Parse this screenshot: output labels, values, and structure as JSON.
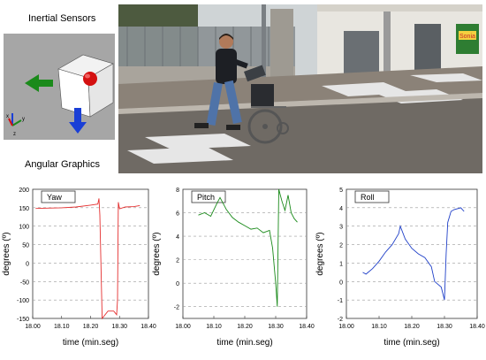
{
  "labels": {
    "inertial_sensors": "Inertial Sensors",
    "angular_graphics": "Angular Graphics"
  },
  "sensor_view": {
    "axis_labels": [
      "z",
      "y",
      "x"
    ],
    "colors": {
      "bg": "#a6a6a6",
      "cube": "#ffffff",
      "sphere": "#e01010",
      "arrow_left": "#1a8a1a",
      "arrow_down": "#1a3fd6"
    }
  },
  "photo": {
    "description_icon": "wheelchair-photo",
    "sign_text": "Sonia"
  },
  "chart_data": [
    {
      "type": "line",
      "title": "Yaw",
      "xlabel": "time (min.seg)",
      "ylabel": "degrees (º)",
      "xlim": [
        18.0,
        18.4
      ],
      "ylim": [
        -150,
        200
      ],
      "xticks": [
        "18.00",
        "18.10",
        "18.20",
        "18.30",
        "18.40"
      ],
      "yticks": [
        "200",
        "150",
        "100",
        "50",
        "0",
        "-50",
        "-100",
        "-150"
      ],
      "color": "#e53030",
      "series": [
        {
          "x": [
            18.01,
            18.05,
            18.1,
            18.15,
            18.2,
            18.225,
            18.229,
            18.232,
            18.24,
            18.26,
            18.28,
            18.29,
            18.293,
            18.296,
            18.3,
            18.32,
            18.35,
            18.37
          ],
          "values": [
            148,
            149,
            150,
            152,
            157,
            160,
            175,
            130,
            -150,
            -130,
            -130,
            -140,
            -100,
            165,
            147,
            152,
            153,
            156
          ]
        }
      ]
    },
    {
      "type": "line",
      "title": "Pitch",
      "xlabel": "time (min.seg)",
      "ylabel": "degrees (º)",
      "xlim": [
        18.0,
        18.4
      ],
      "ylim": [
        -3,
        8
      ],
      "xticks": [
        "18.00",
        "18.10",
        "18.20",
        "18.30",
        "18.40"
      ],
      "yticks": [
        "8",
        "6",
        "4",
        "2",
        "0",
        "-2"
      ],
      "color": "#1a8a1a",
      "series": [
        {
          "x": [
            18.05,
            18.07,
            18.09,
            18.11,
            18.12,
            18.14,
            18.16,
            18.18,
            18.2,
            18.22,
            18.24,
            18.26,
            18.28,
            18.29,
            18.3,
            18.305,
            18.31,
            18.32,
            18.33,
            18.34,
            18.35,
            18.36,
            18.37
          ],
          "values": [
            5.8,
            6.0,
            5.7,
            6.8,
            7.3,
            6.3,
            5.6,
            5.2,
            4.9,
            4.6,
            4.7,
            4.3,
            4.5,
            3.0,
            0.0,
            -2.0,
            8.0,
            7.0,
            6.2,
            7.5,
            6.0,
            5.5,
            5.2
          ]
        }
      ]
    },
    {
      "type": "line",
      "title": "Roll",
      "xlabel": "time (min.seg)",
      "ylabel": "degrees (º)",
      "xlim": [
        18.0,
        18.4
      ],
      "ylim": [
        -2,
        5
      ],
      "xticks": [
        "18.00",
        "18.10",
        "18.20",
        "18.30",
        "18.40"
      ],
      "yticks": [
        "5",
        "4",
        "3",
        "2",
        "1",
        "0",
        "-1",
        "-2"
      ],
      "color": "#2040c8",
      "series": [
        {
          "x": [
            18.05,
            18.06,
            18.08,
            18.1,
            18.12,
            18.14,
            18.16,
            18.165,
            18.18,
            18.2,
            18.22,
            18.24,
            18.26,
            18.27,
            18.29,
            18.3,
            18.305,
            18.31,
            18.32,
            18.33,
            18.35,
            18.36
          ],
          "values": [
            0.5,
            0.4,
            0.7,
            1.1,
            1.6,
            2.0,
            2.6,
            3.0,
            2.3,
            1.8,
            1.5,
            1.3,
            0.8,
            0.0,
            -0.3,
            -1.0,
            1.5,
            3.2,
            3.8,
            3.9,
            4.0,
            3.8
          ]
        }
      ]
    }
  ]
}
